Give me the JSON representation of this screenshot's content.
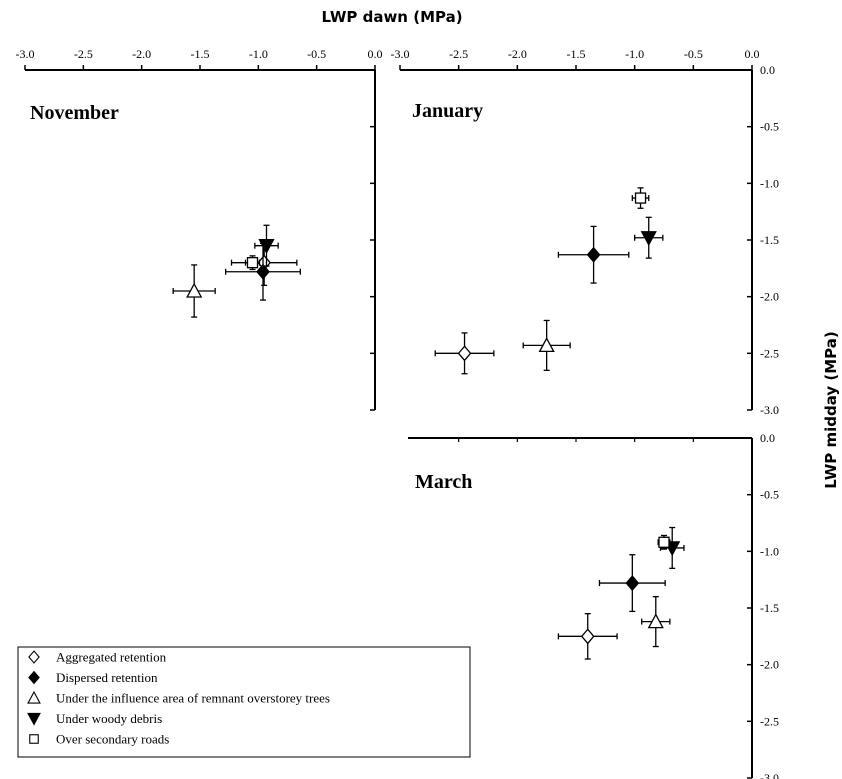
{
  "chart_data": {
    "type": "scatter",
    "x_axis_title": "LWP dawn (MPa)",
    "y_axis_title": "LWP midday (MPa)",
    "x_tick_labels": [
      "-3.0",
      "-2.5",
      "-2.0",
      "-1.5",
      "-1.0",
      "-0.5",
      "0.0"
    ],
    "y_tick_labels": [
      "0.0",
      "-0.5",
      "-1.0",
      "-1.5",
      "-2.0",
      "-2.5",
      "-3.0"
    ],
    "xlim": [
      -3.0,
      0.0
    ],
    "ylim": [
      -3.0,
      0.0
    ],
    "legend_placement": "bottom-left",
    "legend": [
      {
        "marker": "open-diamond",
        "label": "Aggregated retention"
      },
      {
        "marker": "filled-diamond",
        "label": "Dispersed retention"
      },
      {
        "marker": "open-triangle-up",
        "label": "Under the influence area of remnant overstorey trees"
      },
      {
        "marker": "filled-triangle-down",
        "label": "Under woody debris"
      },
      {
        "marker": "open-square",
        "label": "Over secondary roads"
      }
    ],
    "panels": [
      {
        "title": "November",
        "points": [
          {
            "series": "Aggregated retention",
            "x": -0.95,
            "y": -1.7,
            "xerr": 0.28,
            "yerr": 0.2
          },
          {
            "series": "Dispersed retention",
            "x": -0.96,
            "y": -1.78,
            "xerr": 0.32,
            "yerr": 0.25
          },
          {
            "series": "Under the influence area of remnant overstorey trees",
            "x": -1.55,
            "y": -1.95,
            "xerr": 0.18,
            "yerr": 0.23
          },
          {
            "series": "Under woody debris",
            "x": -0.93,
            "y": -1.55,
            "xerr": 0.1,
            "yerr": 0.18
          },
          {
            "series": "Over secondary roads",
            "x": -1.05,
            "y": -1.7,
            "xerr": 0.06,
            "yerr": 0.06
          }
        ]
      },
      {
        "title": "January",
        "points": [
          {
            "series": "Aggregated retention",
            "x": -2.45,
            "y": -2.5,
            "xerr": 0.25,
            "yerr": 0.18
          },
          {
            "series": "Dispersed retention",
            "x": -1.35,
            "y": -1.63,
            "xerr": 0.3,
            "yerr": 0.25
          },
          {
            "series": "Under the influence area of remnant overstorey trees",
            "x": -1.75,
            "y": -2.43,
            "xerr": 0.2,
            "yerr": 0.22
          },
          {
            "series": "Under woody debris",
            "x": -0.88,
            "y": -1.48,
            "xerr": 0.12,
            "yerr": 0.18
          },
          {
            "series": "Over secondary roads",
            "x": -0.95,
            "y": -1.13,
            "xerr": 0.07,
            "yerr": 0.09
          }
        ]
      },
      {
        "title": "March",
        "points": [
          {
            "series": "Aggregated retention",
            "x": -1.4,
            "y": -1.75,
            "xerr": 0.25,
            "yerr": 0.2
          },
          {
            "series": "Dispersed retention",
            "x": -1.02,
            "y": -1.28,
            "xerr": 0.28,
            "yerr": 0.25
          },
          {
            "series": "Under the influence area of remnant overstorey trees",
            "x": -0.82,
            "y": -1.62,
            "xerr": 0.12,
            "yerr": 0.22
          },
          {
            "series": "Under woody debris",
            "x": -0.68,
            "y": -0.97,
            "xerr": 0.1,
            "yerr": 0.18
          },
          {
            "series": "Over secondary roads",
            "x": -0.75,
            "y": -0.92,
            "xerr": 0.05,
            "yerr": 0.06
          }
        ]
      }
    ]
  }
}
